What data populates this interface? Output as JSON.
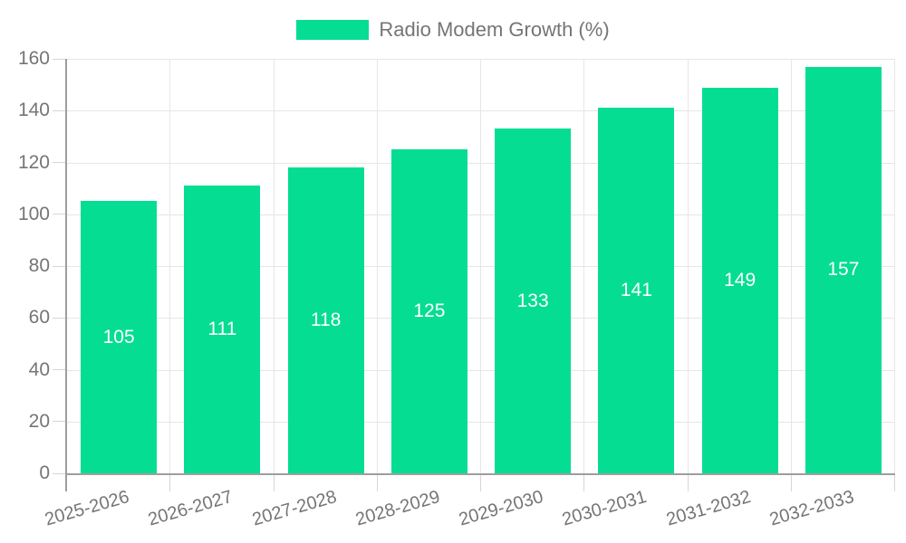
{
  "chart_data": {
    "type": "bar",
    "title": "Radio Modem Growth (%)",
    "categories": [
      "2025-2026",
      "2026-2027",
      "2027-2028",
      "2028-2029",
      "2029-2030",
      "2030-2031",
      "2031-2032",
      "2032-2033"
    ],
    "series": [
      {
        "name": "Radio Modem Growth (%)",
        "values": [
          105,
          111,
          118,
          125,
          133,
          141,
          149,
          157
        ]
      }
    ],
    "values": [
      105,
      111,
      118,
      125,
      133,
      141,
      149,
      157
    ],
    "xlabel": "",
    "ylabel": "",
    "ylim": [
      0,
      160
    ],
    "yticks": [
      0,
      20,
      40,
      60,
      80,
      100,
      120,
      140,
      160
    ],
    "grid": true,
    "legend_position": "top-center",
    "colors": {
      "bar": "#05dd93",
      "bar_label": "#ffffff",
      "axis": "#9e9e9e",
      "grid": "#e6e6e6",
      "tick": "#d6d6d6",
      "text": "#757575",
      "background": "#ffffff"
    }
  }
}
